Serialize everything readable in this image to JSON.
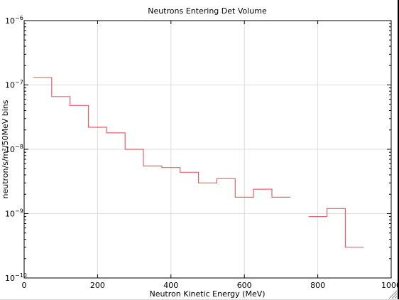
{
  "chart_data": {
    "type": "line",
    "title": "Neutrons Entering Det Volume",
    "xlabel": "Neutron Kinetic Energy (MeV)",
    "ylabel": "neutron/s/m²/50MeV bins",
    "xlim": [
      0,
      1000
    ],
    "ylim": [
      1e-10,
      1e-06
    ],
    "y_scale": "log",
    "grid": true,
    "line_color": "#e8606c",
    "x_ticks": [
      {
        "value": 0,
        "label": "0"
      },
      {
        "value": 200,
        "label": "200"
      },
      {
        "value": 400,
        "label": "400"
      },
      {
        "value": 600,
        "label": "600"
      },
      {
        "value": 800,
        "label": "800"
      },
      {
        "value": 1000,
        "label": "1000"
      }
    ],
    "y_ticks": [
      {
        "value": 1e-10,
        "base": "10",
        "exp": "−10"
      },
      {
        "value": 1e-09,
        "base": "10",
        "exp": "−9"
      },
      {
        "value": 1e-08,
        "base": "10",
        "exp": "−8"
      },
      {
        "value": 1e-07,
        "base": "10",
        "exp": "−7"
      },
      {
        "value": 1e-06,
        "base": "10",
        "exp": "−6"
      }
    ],
    "bins": [
      {
        "x0": 25,
        "x1": 75,
        "y": 1.3e-07
      },
      {
        "x0": 75,
        "x1": 125,
        "y": 6.6e-08
      },
      {
        "x0": 125,
        "x1": 175,
        "y": 4.8e-08
      },
      {
        "x0": 175,
        "x1": 225,
        "y": 2.2e-08
      },
      {
        "x0": 225,
        "x1": 275,
        "y": 1.8e-08
      },
      {
        "x0": 275,
        "x1": 325,
        "y": 1e-08
      },
      {
        "x0": 325,
        "x1": 375,
        "y": 5.5e-09
      },
      {
        "x0": 375,
        "x1": 425,
        "y": 5.2e-09
      },
      {
        "x0": 425,
        "x1": 475,
        "y": 4.4e-09
      },
      {
        "x0": 475,
        "x1": 525,
        "y": 3e-09
      },
      {
        "x0": 525,
        "x1": 575,
        "y": 3.5e-09
      },
      {
        "x0": 575,
        "x1": 625,
        "y": 1.8e-09
      },
      {
        "x0": 625,
        "x1": 675,
        "y": 2.4e-09
      },
      {
        "x0": 675,
        "x1": 725,
        "y": 1.8e-09
      },
      {
        "x0": 775,
        "x1": 825,
        "y": 9e-10
      },
      {
        "x0": 825,
        "x1": 875,
        "y": 1.2e-09
      },
      {
        "x0": 875,
        "x1": 925,
        "y": 3e-10
      }
    ]
  }
}
